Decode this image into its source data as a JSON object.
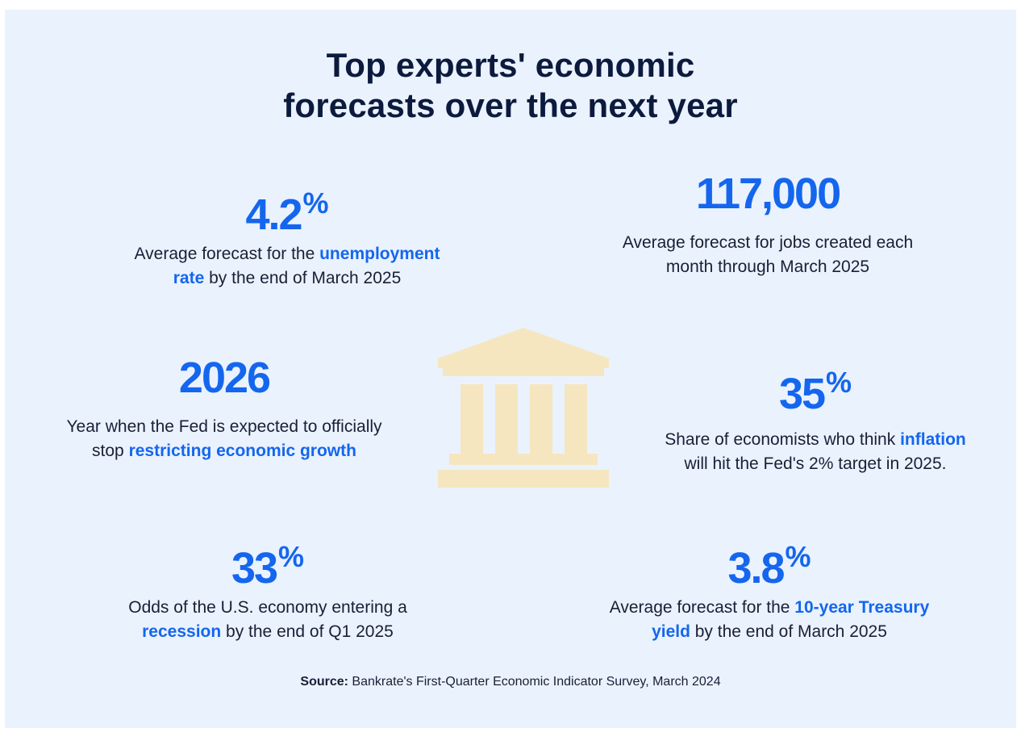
{
  "title": {
    "line1": "Top experts' economic",
    "line2": "forecasts over the next year"
  },
  "stats": {
    "unemployment": {
      "value": "4.2",
      "unit": "%",
      "pre": "Average forecast for the ",
      "hl1": "unemployment",
      "hl2": "rate",
      "post": " by the end of March 2025"
    },
    "jobs": {
      "value": "117,000",
      "line1": "Average forecast for jobs created each",
      "line2": "month through March 2025"
    },
    "fed": {
      "value": "2026",
      "line1": "Year when the Fed is expected to officially",
      "pre": "stop ",
      "hl": "restricting economic growth"
    },
    "inflation": {
      "value": "35",
      "unit": "%",
      "pre": "Share of economists who think ",
      "hl": "inflation",
      "line2": "will hit the Fed's 2% target in 2025."
    },
    "recession": {
      "value": "33",
      "unit": "%",
      "line1": "Odds of the U.S. economy entering a",
      "hl": "recession",
      "post": " by the end of Q1 2025"
    },
    "treasury": {
      "value": "3.8",
      "unit": "%",
      "pre": "Average forecast for the ",
      "hl1": "10-year Treasury",
      "hl2": "yield",
      "post": " by the end of March 2025"
    }
  },
  "source": {
    "label": "Source:",
    "text": " Bankrate's First-Quarter Economic Indicator Survey, March 2024"
  },
  "icon": {
    "name": "bank-building-icon",
    "color": "#f5e6c0"
  },
  "colors": {
    "background": "#eaf2fd",
    "accent": "#1466ee",
    "title": "#0c1a3d"
  }
}
